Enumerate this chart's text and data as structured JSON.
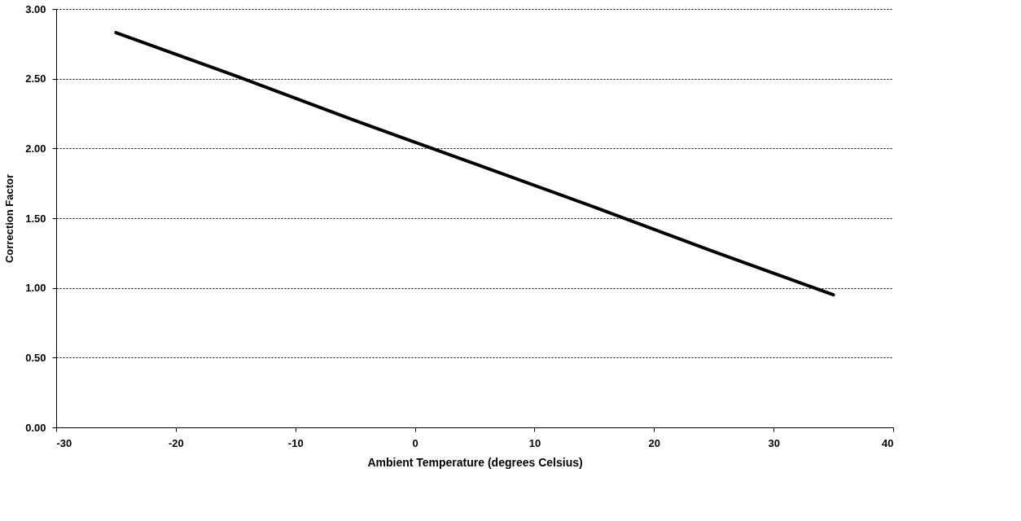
{
  "chart_data": {
    "type": "line",
    "xlabel": "Ambient Temperature  (degrees Celsius)",
    "ylabel": "Correction Factor",
    "x": [
      -25,
      -15,
      -5,
      5,
      15,
      25,
      35
    ],
    "series": [
      {
        "color": "#000000",
        "values": [
          2.83,
          2.52,
          2.2,
          1.89,
          1.58,
          1.26,
          0.95
        ]
      }
    ],
    "xlim": [
      -30,
      40
    ],
    "xticks": [
      -30,
      -20,
      -10,
      0,
      10,
      20,
      30,
      40
    ],
    "ylim": [
      0,
      3
    ],
    "yticks": [
      {
        "value": 0,
        "label": "0.00"
      },
      {
        "value": 0.5,
        "label": "0.50"
      },
      {
        "value": 1,
        "label": "1.00"
      },
      {
        "value": 1.5,
        "label": "1.50"
      },
      {
        "value": 2,
        "label": "2.00"
      },
      {
        "value": 2.5,
        "label": "2.50"
      },
      {
        "value": 3,
        "label": "3.00"
      }
    ],
    "grid": "y",
    "marker": "none",
    "line_style": "solid"
  }
}
